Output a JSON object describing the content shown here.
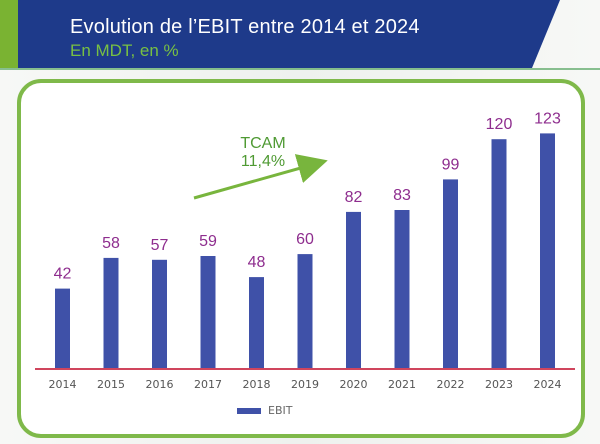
{
  "header": {
    "title": "Evolution de l’EBIT entre 2014 et 2024",
    "subtitle": "En MDT, en %"
  },
  "annotation": {
    "label": "TCAM",
    "value": "11,4%"
  },
  "legend": {
    "items": [
      {
        "label": "EBIT",
        "color": "#3f51a8"
      }
    ]
  },
  "chart_data": {
    "type": "bar",
    "categories": [
      "2014",
      "2015",
      "2016",
      "2017",
      "2018",
      "2019",
      "2020",
      "2021",
      "2022",
      "2023",
      "2024"
    ],
    "series": [
      {
        "name": "EBIT",
        "values": [
          42,
          58,
          57,
          59,
          48,
          60,
          82,
          83,
          99,
          120,
          123
        ]
      }
    ],
    "data_labels": [
      "42",
      "58",
      "57",
      "59",
      "48",
      "60",
      "82",
      "83",
      "99",
      "120",
      "123"
    ],
    "ylim": [
      0,
      130
    ],
    "grid": false,
    "legend_position": "bottom",
    "colors": {
      "bar": "#3f51a8",
      "labels": "#8e2d8e",
      "baseline": "#d0455d",
      "arrow": "#78b53d"
    }
  }
}
